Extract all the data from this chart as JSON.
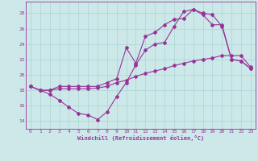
{
  "xlabel": "Windchill (Refroidissement éolien,°C)",
  "xlim": [
    -0.5,
    23.5
  ],
  "ylim": [
    13.0,
    29.5
  ],
  "xticks": [
    0,
    1,
    2,
    3,
    4,
    5,
    6,
    7,
    8,
    9,
    10,
    11,
    12,
    13,
    14,
    15,
    16,
    17,
    18,
    19,
    20,
    21,
    22,
    23
  ],
  "yticks": [
    14,
    16,
    18,
    20,
    22,
    24,
    26,
    28
  ],
  "background_color": "#cce8e8",
  "line_color": "#993399",
  "grid_color": "#aad4d4",
  "line1_y": [
    18.5,
    18.0,
    17.5,
    16.7,
    15.8,
    15.0,
    14.8,
    14.2,
    15.2,
    17.2,
    19.0,
    21.3,
    23.2,
    24.0,
    24.2,
    26.3,
    28.2,
    28.5,
    28.0,
    27.8,
    26.3,
    22.0,
    21.8,
    20.8
  ],
  "line2_y": [
    18.5,
    18.0,
    18.0,
    18.2,
    18.2,
    18.2,
    18.2,
    18.3,
    18.5,
    19.0,
    19.3,
    19.8,
    20.2,
    20.5,
    20.8,
    21.2,
    21.5,
    21.8,
    22.0,
    22.2,
    22.5,
    22.5,
    22.5,
    21.0
  ],
  "line3_y": [
    18.5,
    18.0,
    18.0,
    18.5,
    18.5,
    18.5,
    18.5,
    18.5,
    19.0,
    19.5,
    23.5,
    21.5,
    25.0,
    25.5,
    26.5,
    27.2,
    27.3,
    28.5,
    27.8,
    26.5,
    26.5,
    22.0,
    21.8,
    20.8
  ]
}
